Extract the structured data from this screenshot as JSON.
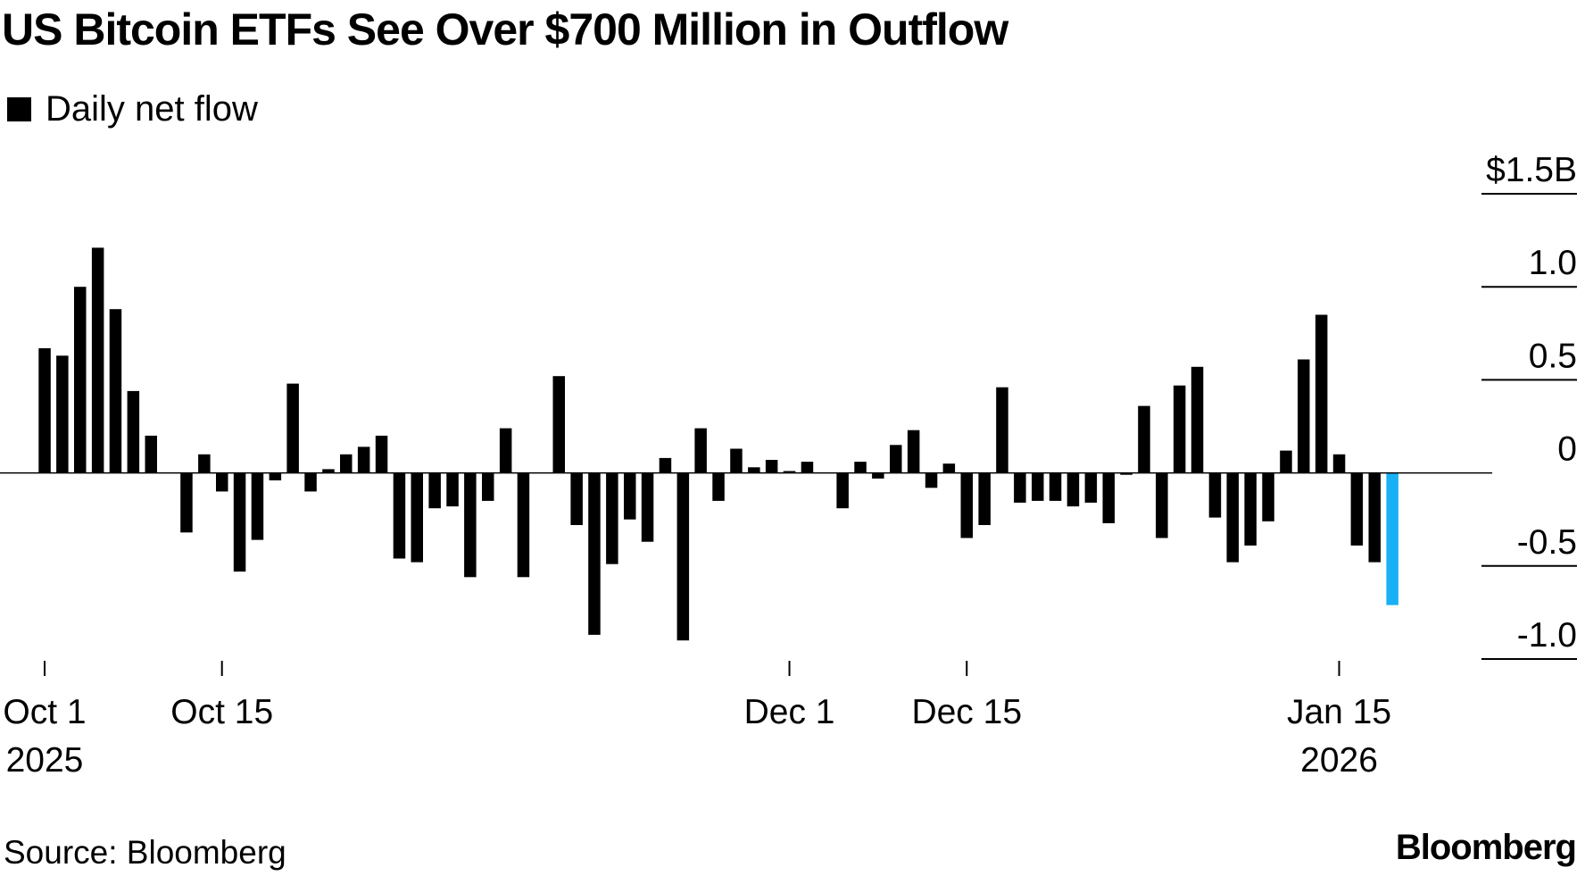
{
  "chart_data": {
    "type": "bar",
    "title": "US Bitcoin ETFs See Over $700 Million in Outflow",
    "legend": {
      "entries": [
        "Daily net flow"
      ],
      "placement": "top-left"
    },
    "series": [
      {
        "name": "Daily net flow",
        "unit": "$B",
        "color": "#000000",
        "highlight_color": "#1ab0f5",
        "values": [
          0.67,
          0.63,
          1.0,
          1.21,
          0.88,
          0.44,
          0.2,
          0.0,
          -0.32,
          0.1,
          -0.1,
          -0.53,
          -0.36,
          -0.04,
          0.48,
          -0.1,
          0.02,
          0.1,
          0.14,
          0.2,
          -0.46,
          -0.48,
          -0.19,
          -0.18,
          -0.56,
          -0.15,
          0.24,
          -0.56,
          0.0,
          0.52,
          -0.28,
          -0.87,
          -0.49,
          -0.25,
          -0.37,
          0.08,
          -0.9,
          0.24,
          -0.15,
          0.13,
          0.03,
          0.07,
          0.01,
          0.06,
          0.0,
          -0.19,
          0.06,
          -0.03,
          0.15,
          0.23,
          -0.08,
          0.05,
          -0.35,
          -0.28,
          0.46,
          -0.16,
          -0.15,
          -0.15,
          -0.18,
          -0.16,
          -0.27,
          -0.01,
          0.36,
          -0.35,
          0.47,
          0.57,
          -0.24,
          -0.48,
          -0.39,
          -0.26,
          0.12,
          0.61,
          0.85,
          0.1,
          -0.39,
          -0.48,
          -0.71
        ]
      }
    ],
    "highlight_index": 76,
    "x_ticks": [
      {
        "line1": "Oct 1",
        "line2": "2025",
        "index": 0
      },
      {
        "line1": "Oct 15",
        "line2": "",
        "index": 10
      },
      {
        "line1": "Dec 1",
        "line2": "",
        "index": 42
      },
      {
        "line1": "Dec 15",
        "line2": "",
        "index": 52
      },
      {
        "line1": "Jan 15",
        "line2": "2026",
        "index": 73
      }
    ],
    "y_ticks": [
      {
        "value": 1.5,
        "label": "$1.5B"
      },
      {
        "value": 1.0,
        "label": "1.0"
      },
      {
        "value": 0.5,
        "label": "0.5"
      },
      {
        "value": 0,
        "label": "0"
      },
      {
        "value": -0.5,
        "label": "-0.5"
      },
      {
        "value": -1.0,
        "label": "-1.0"
      }
    ],
    "ylim": [
      -1.0,
      1.5
    ],
    "grid": false,
    "source": "Source: Bloomberg",
    "brand": "Bloomberg"
  }
}
